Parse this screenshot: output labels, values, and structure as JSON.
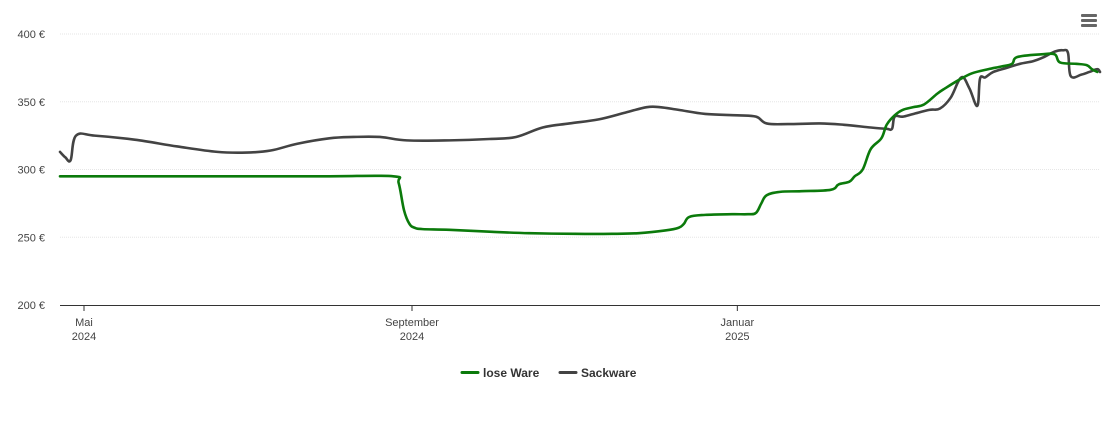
{
  "colors": {
    "lose_ware": "#0b7a0b",
    "sackware": "#434343",
    "grid": "#e6e6e6",
    "axis": "#333333"
  },
  "icons": {
    "menu": "hamburger-menu-icon"
  },
  "chart_data": {
    "type": "line",
    "title": "",
    "xlabel": "",
    "ylabel": "",
    "ylim": [
      200,
      400
    ],
    "yticks": [
      {
        "value": 400,
        "label": "400 €"
      },
      {
        "value": 350,
        "label": "350 €"
      },
      {
        "value": 300,
        "label": "300 €"
      },
      {
        "value": 250,
        "label": "250 €"
      },
      {
        "value": 200,
        "label": "200 €"
      }
    ],
    "xlim": [
      "2024-04-22",
      "2025-05-17"
    ],
    "xticks": [
      {
        "date": "2024-05-01",
        "label": "Mai",
        "sublabel": "2024"
      },
      {
        "date": "2024-09-01",
        "label": "September",
        "sublabel": "2024"
      },
      {
        "date": "2025-01-01",
        "label": "Januar",
        "sublabel": "2025"
      }
    ],
    "grid": true,
    "legend_position": "bottom-center",
    "series": [
      {
        "name": "lose Ware",
        "color": "#0b7a0b",
        "points": [
          [
            "2024-04-22",
            295
          ],
          [
            "2024-05-01",
            295
          ],
          [
            "2024-06-01",
            295
          ],
          [
            "2024-07-01",
            295
          ],
          [
            "2024-08-01",
            295
          ],
          [
            "2024-08-25",
            295
          ],
          [
            "2024-08-27",
            290
          ],
          [
            "2024-08-29",
            270
          ],
          [
            "2024-08-31",
            260
          ],
          [
            "2024-09-02",
            257
          ],
          [
            "2024-09-05",
            256
          ],
          [
            "2024-09-15",
            255.5
          ],
          [
            "2024-10-01",
            254
          ],
          [
            "2024-10-15",
            253
          ],
          [
            "2024-11-01",
            252.5
          ],
          [
            "2024-11-15",
            252.5
          ],
          [
            "2024-11-25",
            253
          ],
          [
            "2024-12-05",
            255
          ],
          [
            "2024-12-10",
            257
          ],
          [
            "2024-12-12",
            260
          ],
          [
            "2024-12-14",
            265
          ],
          [
            "2024-12-20",
            266.5
          ],
          [
            "2024-12-30",
            267
          ],
          [
            "2025-01-05",
            267
          ],
          [
            "2025-01-08",
            268
          ],
          [
            "2025-01-10",
            275
          ],
          [
            "2025-01-12",
            281
          ],
          [
            "2025-01-17",
            283.5
          ],
          [
            "2025-01-25",
            284
          ],
          [
            "2025-02-05",
            285
          ],
          [
            "2025-02-08",
            289
          ],
          [
            "2025-02-12",
            291
          ],
          [
            "2025-02-14",
            295
          ],
          [
            "2025-02-17",
            300
          ],
          [
            "2025-02-20",
            315
          ],
          [
            "2025-02-24",
            323
          ],
          [
            "2025-02-26",
            333
          ],
          [
            "2025-03-01",
            340
          ],
          [
            "2025-03-04",
            344
          ],
          [
            "2025-03-08",
            346
          ],
          [
            "2025-03-12",
            348
          ],
          [
            "2025-03-17",
            356
          ],
          [
            "2025-03-20",
            360
          ],
          [
            "2025-03-25",
            366
          ],
          [
            "2025-03-30",
            371
          ],
          [
            "2025-04-05",
            374
          ],
          [
            "2025-04-10",
            376
          ],
          [
            "2025-04-14",
            378
          ],
          [
            "2025-04-16",
            383
          ],
          [
            "2025-04-25",
            385
          ],
          [
            "2025-04-30",
            385
          ],
          [
            "2025-05-02",
            379
          ],
          [
            "2025-05-08",
            378
          ],
          [
            "2025-05-12",
            377
          ],
          [
            "2025-05-14",
            374
          ],
          [
            "2025-05-16",
            372
          ]
        ]
      },
      {
        "name": "Sackware",
        "color": "#434343",
        "points": [
          [
            "2024-04-22",
            313
          ],
          [
            "2024-04-24",
            309
          ],
          [
            "2024-04-26",
            307
          ],
          [
            "2024-04-28",
            325
          ],
          [
            "2024-05-05",
            325
          ],
          [
            "2024-05-20",
            322
          ],
          [
            "2024-06-05",
            317
          ],
          [
            "2024-06-20",
            313
          ],
          [
            "2024-07-01",
            312.5
          ],
          [
            "2024-07-10",
            314
          ],
          [
            "2024-07-20",
            319
          ],
          [
            "2024-08-01",
            323
          ],
          [
            "2024-08-10",
            324
          ],
          [
            "2024-08-20",
            324
          ],
          [
            "2024-08-30",
            321.5
          ],
          [
            "2024-09-15",
            321.5
          ],
          [
            "2024-09-30",
            322.5
          ],
          [
            "2024-10-10",
            324
          ],
          [
            "2024-10-20",
            331
          ],
          [
            "2024-10-30",
            334
          ],
          [
            "2024-11-10",
            337
          ],
          [
            "2024-11-20",
            342
          ],
          [
            "2024-11-28",
            346
          ],
          [
            "2024-12-03",
            346
          ],
          [
            "2024-12-10",
            344
          ],
          [
            "2024-12-20",
            341
          ],
          [
            "2025-01-01",
            340
          ],
          [
            "2025-01-08",
            339
          ],
          [
            "2025-01-12",
            334
          ],
          [
            "2025-01-20",
            333.5
          ],
          [
            "2025-02-01",
            334
          ],
          [
            "2025-02-10",
            333
          ],
          [
            "2025-02-20",
            331
          ],
          [
            "2025-02-26",
            330
          ],
          [
            "2025-02-28",
            330
          ],
          [
            "2025-03-01",
            339
          ],
          [
            "2025-03-04",
            339
          ],
          [
            "2025-03-08",
            341
          ],
          [
            "2025-03-14",
            344
          ],
          [
            "2025-03-18",
            345
          ],
          [
            "2025-03-22",
            353
          ],
          [
            "2025-03-26",
            368
          ],
          [
            "2025-03-29",
            360
          ],
          [
            "2025-04-01",
            347
          ],
          [
            "2025-04-02",
            367
          ],
          [
            "2025-04-04",
            368
          ],
          [
            "2025-04-07",
            372
          ],
          [
            "2025-04-12",
            375
          ],
          [
            "2025-04-17",
            378
          ],
          [
            "2025-04-22",
            380
          ],
          [
            "2025-04-26",
            383
          ],
          [
            "2025-04-30",
            387
          ],
          [
            "2025-05-03",
            388
          ],
          [
            "2025-05-05",
            386
          ],
          [
            "2025-05-06",
            369
          ],
          [
            "2025-05-10",
            370
          ],
          [
            "2025-05-13",
            372
          ],
          [
            "2025-05-16",
            374
          ],
          [
            "2025-05-17",
            372
          ]
        ]
      }
    ]
  }
}
